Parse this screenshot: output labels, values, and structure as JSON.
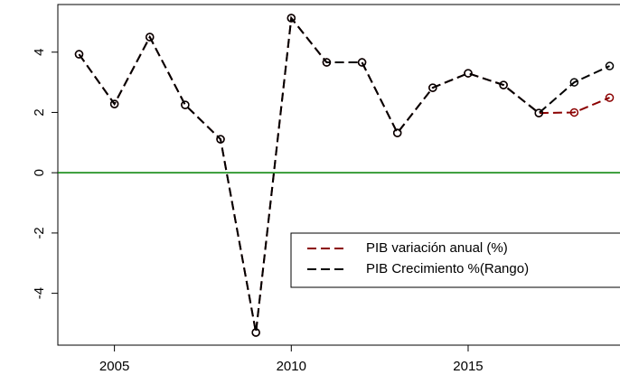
{
  "chart_data": {
    "type": "line",
    "x": [
      2004,
      2005,
      2006,
      2007,
      2008,
      2009,
      2010,
      2011,
      2012,
      2013,
      2014,
      2015,
      2016,
      2017,
      2018,
      2019
    ],
    "series": [
      {
        "name": "PIB variación anual (%)",
        "color": "#8b0000",
        "values": [
          3.93,
          2.28,
          4.5,
          2.25,
          1.11,
          -5.3,
          5.13,
          3.66,
          3.66,
          1.32,
          2.82,
          3.3,
          2.91,
          1.98,
          2.0,
          2.49
        ]
      },
      {
        "name": "PIB Crecimiento %(Rango)",
        "color": "#000000",
        "values": [
          3.93,
          2.28,
          4.5,
          2.25,
          1.11,
          -5.3,
          5.13,
          3.66,
          3.66,
          1.32,
          2.82,
          3.3,
          2.91,
          1.98,
          3.0,
          3.54
        ]
      }
    ],
    "xlim": [
      2003.4,
      2019.6
    ],
    "xticks": [
      2005,
      2010,
      2015
    ],
    "ylim": [
      -5.72,
      5.58
    ],
    "yticks": [
      -4,
      -2,
      0,
      2,
      4
    ],
    "hlines": [
      {
        "value": 0,
        "color": "#008000"
      }
    ],
    "legend": "bottom-right"
  }
}
